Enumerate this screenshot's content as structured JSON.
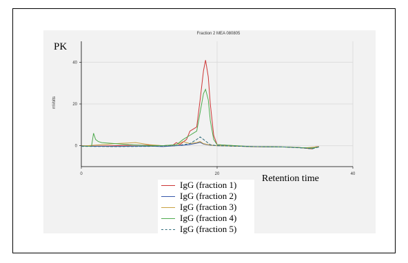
{
  "chart_data": {
    "type": "line",
    "title": "Fraction 2 MEA 080805",
    "corner_label": "PK",
    "xlabel": "Retention time",
    "ylabel": "mVolts",
    "xlim": [
      0,
      40
    ],
    "ylim": [
      -10,
      50
    ],
    "x_ticks": [
      0,
      20,
      40
    ],
    "y_ticks": [
      0,
      20,
      40
    ],
    "grid": true,
    "legend_position": "bottom-center",
    "series": [
      {
        "name": "IgG (fraction 1)",
        "color": "#cc3333",
        "points": [
          [
            0,
            0
          ],
          [
            2,
            -0.2
          ],
          [
            5,
            0
          ],
          [
            8,
            0.3
          ],
          [
            10,
            0.2
          ],
          [
            12,
            0
          ],
          [
            13.5,
            0.3
          ],
          [
            14,
            1.5
          ],
          [
            14.5,
            0.5
          ],
          [
            15.5,
            3
          ],
          [
            16,
            7
          ],
          [
            16.5,
            8
          ],
          [
            17,
            9
          ],
          [
            17.5,
            22
          ],
          [
            18,
            36
          ],
          [
            18.3,
            41
          ],
          [
            18.7,
            33
          ],
          [
            19,
            20
          ],
          [
            19.5,
            5
          ],
          [
            20,
            0.5
          ],
          [
            25,
            -0.5
          ],
          [
            30,
            -0.6
          ],
          [
            32,
            -0.8
          ],
          [
            33,
            -1.2
          ],
          [
            34,
            -1.5
          ],
          [
            34.5,
            -0.5
          ],
          [
            35,
            -0.4
          ]
        ]
      },
      {
        "name": "IgG (fraction 2)",
        "color": "#3355aa",
        "points": [
          [
            0,
            -0.2
          ],
          [
            5,
            -0.3
          ],
          [
            10,
            -0.2
          ],
          [
            12,
            -0.4
          ],
          [
            14,
            0
          ],
          [
            15,
            0.2
          ],
          [
            16,
            0.6
          ],
          [
            17,
            1.2
          ],
          [
            17.5,
            1.6
          ],
          [
            18,
            0.8
          ],
          [
            19,
            0.2
          ],
          [
            20,
            0
          ],
          [
            25,
            -0.4
          ],
          [
            30,
            -0.6
          ],
          [
            33,
            -1
          ],
          [
            34,
            -1.1
          ],
          [
            35,
            -0.6
          ]
        ]
      },
      {
        "name": "IgG (fraction 3)",
        "color": "#c8a040",
        "points": [
          [
            0,
            -0.2
          ],
          [
            3,
            0.5
          ],
          [
            5,
            1
          ],
          [
            8,
            1.5
          ],
          [
            10,
            0.5
          ],
          [
            12,
            0
          ],
          [
            14,
            0.5
          ],
          [
            15,
            2
          ],
          [
            16,
            1
          ],
          [
            17,
            1.5
          ],
          [
            17.5,
            2
          ],
          [
            18,
            1
          ],
          [
            19,
            0.3
          ],
          [
            20,
            0
          ],
          [
            25,
            -0.4
          ],
          [
            30,
            -0.6
          ],
          [
            33,
            -1
          ],
          [
            35,
            -0.5
          ]
        ]
      },
      {
        "name": "IgG (fraction 4)",
        "color": "#4daa4d",
        "points": [
          [
            0,
            -0.1
          ],
          [
            1.5,
            -0.3
          ],
          [
            1.8,
            6
          ],
          [
            2.1,
            3
          ],
          [
            2.5,
            2
          ],
          [
            3,
            1.5
          ],
          [
            5,
            1
          ],
          [
            7,
            0.5
          ],
          [
            10,
            0
          ],
          [
            12,
            0
          ],
          [
            14,
            0.5
          ],
          [
            15,
            3
          ],
          [
            15.5,
            4
          ],
          [
            16,
            5
          ],
          [
            16.5,
            6
          ],
          [
            17,
            7
          ],
          [
            17.5,
            16
          ],
          [
            18,
            25
          ],
          [
            18.3,
            27
          ],
          [
            18.7,
            22
          ],
          [
            19,
            12
          ],
          [
            19.5,
            3
          ],
          [
            20,
            0.5
          ],
          [
            25,
            -0.4
          ],
          [
            30,
            -0.6
          ],
          [
            33,
            -1
          ],
          [
            34,
            -1.2
          ],
          [
            35,
            -0.5
          ]
        ]
      },
      {
        "name": "IgG (fraction 5)",
        "color": "#2e6b7a",
        "dashed": true,
        "points": [
          [
            0,
            -0.3
          ],
          [
            5,
            -0.4
          ],
          [
            10,
            -0.3
          ],
          [
            12,
            -0.2
          ],
          [
            14,
            0
          ],
          [
            15,
            0.5
          ],
          [
            16,
            1
          ],
          [
            17,
            3
          ],
          [
            17.5,
            4.2
          ],
          [
            18,
            3
          ],
          [
            19,
            0.5
          ],
          [
            20,
            0
          ],
          [
            25,
            -0.4
          ],
          [
            30,
            -0.6
          ],
          [
            33,
            -1.2
          ],
          [
            34,
            -1.5
          ],
          [
            35,
            -0.6
          ]
        ]
      }
    ]
  }
}
